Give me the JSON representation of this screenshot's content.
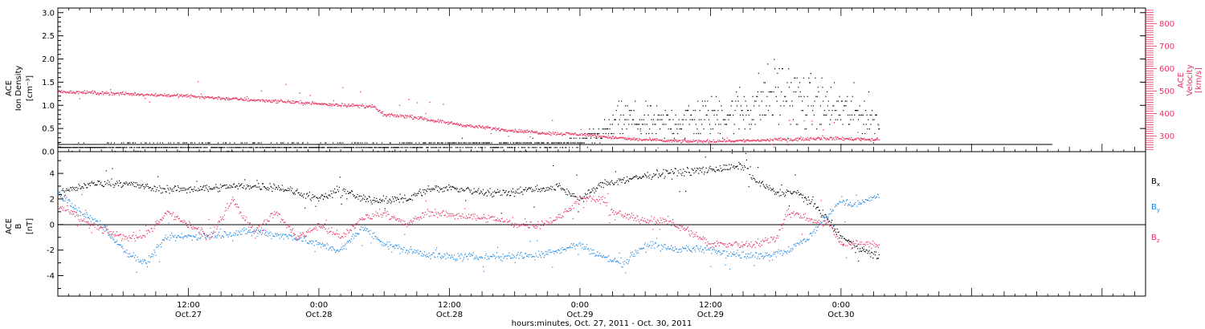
{
  "figure": {
    "xaxis_title": "hours:minutes, Oct. 27, 2011 - Oct. 30, 2011",
    "ticks": [
      {
        "hour": 12,
        "time": "12:00",
        "date": "Oct.27"
      },
      {
        "hour": 24,
        "time": "0:00",
        "date": "Oct.28"
      },
      {
        "hour": 36,
        "time": "12:00",
        "date": "Oct.28"
      },
      {
        "hour": 48,
        "time": "0:00",
        "date": "Oct.29"
      },
      {
        "hour": 60,
        "time": "12:00",
        "date": "Oct.29"
      },
      {
        "hour": 72,
        "time": "0:00",
        "date": "Oct.30"
      }
    ]
  },
  "chart_data": [
    {
      "type": "scatter",
      "panel": "top",
      "ylabel": [
        "ACE",
        "Ion Density",
        "[cm⁻³]"
      ],
      "ylim": [
        0,
        3.1
      ],
      "yticks": [
        "0.0",
        "0.5",
        "1.0",
        "1.5",
        "2.0",
        "2.5",
        "3.0"
      ],
      "y2label": [
        "ACE",
        "Velocity",
        "[km/s]"
      ],
      "y2lim": [
        230,
        870
      ],
      "y2ticks": [
        "300",
        "400",
        "500",
        "600",
        "700",
        "800"
      ],
      "xlim_hours": [
        0,
        100
      ],
      "data_end_hour": 75.5,
      "colors": {
        "density": "#000000",
        "velocity": "#e8325f"
      },
      "series": [
        {
          "axis": "left",
          "values": [
            [
              0,
              0.1
            ],
            [
              6,
              0.12
            ],
            [
              12,
              0.12
            ],
            [
              18,
              0.12
            ],
            [
              24,
              0.12
            ],
            [
              30,
              0.12
            ],
            [
              36,
              0.15
            ],
            [
              42,
              0.15
            ],
            [
              46,
              0.16
            ],
            [
              48,
              0.2
            ],
            [
              50,
              0.4
            ],
            [
              52,
              0.7
            ],
            [
              55,
              0.6
            ],
            [
              58,
              0.7
            ],
            [
              61,
              0.8
            ],
            [
              64,
              1.0
            ],
            [
              66,
              1.3
            ],
            [
              68,
              1.1
            ],
            [
              70,
              1.0
            ],
            [
              72,
              0.9
            ],
            [
              74,
              0.8
            ],
            [
              75.5,
              0.6
            ]
          ]
        },
        {
          "axis": "right",
          "values": [
            [
              0,
              500
            ],
            [
              3,
              495
            ],
            [
              6,
              490
            ],
            [
              9,
              485
            ],
            [
              12,
              480
            ],
            [
              15,
              470
            ],
            [
              18,
              462
            ],
            [
              21,
              455
            ],
            [
              24,
              445
            ],
            [
              27,
              438
            ],
            [
              29,
              432
            ],
            [
              30,
              395
            ],
            [
              32,
              390
            ],
            [
              34,
              375
            ],
            [
              36,
              360
            ],
            [
              38,
              345
            ],
            [
              40,
              335
            ],
            [
              42,
              325
            ],
            [
              44,
              318
            ],
            [
              46,
              312
            ],
            [
              48,
              310
            ],
            [
              50,
              300
            ],
            [
              52,
              290
            ],
            [
              54,
              285
            ],
            [
              56,
              280
            ],
            [
              58,
              278
            ],
            [
              60,
              279
            ],
            [
              62,
              280
            ],
            [
              64,
              282
            ],
            [
              66,
              285
            ],
            [
              68,
              288
            ],
            [
              70,
              292
            ],
            [
              72,
              290
            ],
            [
              74,
              288
            ],
            [
              75.5,
              285
            ]
          ]
        }
      ]
    },
    {
      "type": "scatter",
      "panel": "bottom",
      "ylabel": [
        "ACE",
        "B",
        "[nT]"
      ],
      "ylim": [
        -5.6,
        5.7
      ],
      "yticks": [
        "-4",
        "-2",
        "0",
        "2",
        "4"
      ],
      "xlim_hours": [
        0,
        100
      ],
      "data_end_hour": 75.5,
      "series": [
        {
          "name": "B",
          "sub": "x",
          "color": "#000000",
          "values": [
            [
              0,
              2.5
            ],
            [
              3,
              3.2
            ],
            [
              6,
              3.3
            ],
            [
              9,
              2.8
            ],
            [
              12,
              2.8
            ],
            [
              16,
              3.0
            ],
            [
              20,
              3.0
            ],
            [
              24,
              2.0
            ],
            [
              26,
              2.8
            ],
            [
              28,
              2.0
            ],
            [
              30,
              2.0
            ],
            [
              32,
              2.0
            ],
            [
              34,
              2.8
            ],
            [
              36,
              2.9
            ],
            [
              40,
              2.5
            ],
            [
              44,
              2.8
            ],
            [
              46,
              3.0
            ],
            [
              48,
              2.0
            ],
            [
              50,
              3.2
            ],
            [
              52,
              3.5
            ],
            [
              55,
              4.0
            ],
            [
              58,
              4.2
            ],
            [
              61,
              4.4
            ],
            [
              63,
              4.6
            ],
            [
              64,
              3.5
            ],
            [
              66,
              2.5
            ],
            [
              68,
              2.5
            ],
            [
              70,
              1.2
            ],
            [
              72,
              -1.0
            ],
            [
              74,
              -2.0
            ],
            [
              75.5,
              -2.5
            ]
          ]
        },
        {
          "name": "B",
          "sub": "y",
          "color": "#1b87e6",
          "values": [
            [
              0,
              2.5
            ],
            [
              2,
              1.0
            ],
            [
              4,
              0.0
            ],
            [
              6,
              -2.0
            ],
            [
              8,
              -3.0
            ],
            [
              10,
              -1.0
            ],
            [
              14,
              -0.8
            ],
            [
              18,
              -0.5
            ],
            [
              22,
              -1.0
            ],
            [
              24,
              -1.5
            ],
            [
              26,
              -2.0
            ],
            [
              28,
              -0.2
            ],
            [
              30,
              -1.5
            ],
            [
              32,
              -2.0
            ],
            [
              34,
              -2.3
            ],
            [
              36,
              -2.5
            ],
            [
              40,
              -2.5
            ],
            [
              44,
              -2.3
            ],
            [
              46,
              -2.0
            ],
            [
              48,
              -1.5
            ],
            [
              50,
              -2.5
            ],
            [
              52,
              -3.0
            ],
            [
              54,
              -1.5
            ],
            [
              56,
              -1.8
            ],
            [
              60,
              -2.0
            ],
            [
              62,
              -2.2
            ],
            [
              64,
              -2.5
            ],
            [
              67,
              -2.0
            ],
            [
              69,
              -1.0
            ],
            [
              71,
              1.0
            ],
            [
              72,
              2.0
            ],
            [
              73,
              1.5
            ],
            [
              75.5,
              2.3
            ]
          ]
        },
        {
          "name": "B",
          "sub": "z",
          "color": "#e8325f",
          "values": [
            [
              0,
              1.5
            ],
            [
              3,
              0.0
            ],
            [
              6,
              -1.0
            ],
            [
              8,
              -0.8
            ],
            [
              10,
              1.0
            ],
            [
              12,
              0.0
            ],
            [
              14,
              -1.0
            ],
            [
              16,
              2.0
            ],
            [
              18,
              -0.5
            ],
            [
              20,
              1.0
            ],
            [
              22,
              -1.0
            ],
            [
              24,
              0.0
            ],
            [
              26,
              -1.0
            ],
            [
              28,
              0.5
            ],
            [
              30,
              1.0
            ],
            [
              32,
              0.0
            ],
            [
              34,
              1.0
            ],
            [
              36,
              0.8
            ],
            [
              40,
              0.5
            ],
            [
              42,
              0.0
            ],
            [
              44,
              0.0
            ],
            [
              46,
              0.5
            ],
            [
              48,
              2.0
            ],
            [
              50,
              2.0
            ],
            [
              51,
              1.0
            ],
            [
              53,
              0.5
            ],
            [
              56,
              0.3
            ],
            [
              58,
              -0.5
            ],
            [
              60,
              -1.5
            ],
            [
              62,
              -1.5
            ],
            [
              64,
              -1.5
            ],
            [
              66,
              -1.0
            ],
            [
              67,
              1.0
            ],
            [
              69,
              0.5
            ],
            [
              71,
              0.0
            ],
            [
              72,
              -1.5
            ],
            [
              74,
              -1.5
            ],
            [
              75.5,
              -1.6
            ]
          ]
        }
      ]
    }
  ]
}
